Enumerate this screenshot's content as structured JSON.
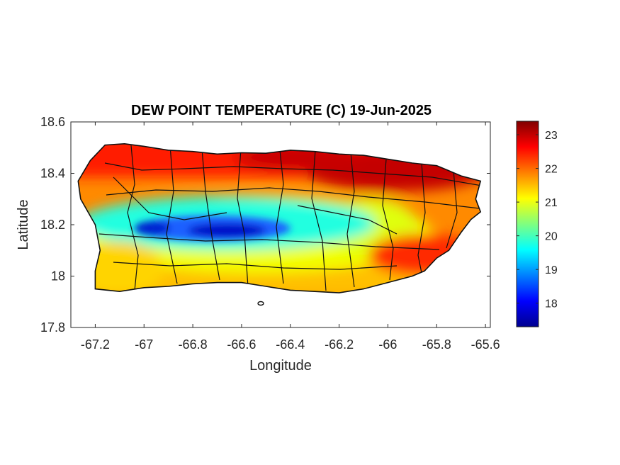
{
  "chart_data": {
    "type": "heatmap",
    "title": "DEW POINT TEMPERATURE (C) 19-Jun-2025",
    "xlabel": "Longitude",
    "ylabel": "Latitude",
    "xlim": [
      -67.3,
      -65.58
    ],
    "ylim": [
      17.8,
      18.6
    ],
    "xticks": [
      -67.2,
      -67,
      -66.8,
      -66.6,
      -66.4,
      -66.2,
      -66,
      -65.8,
      -65.6
    ],
    "yticks": [
      17.8,
      18,
      18.2,
      18.4,
      18.6
    ],
    "xtick_labels": [
      "-67.2",
      "-67",
      "-66.8",
      "-66.6",
      "-66.4",
      "-66.2",
      "-66",
      "-65.8",
      "-65.6"
    ],
    "ytick_labels": [
      "17.8",
      "18",
      "18.2",
      "18.4",
      "18.6"
    ],
    "colorbar": {
      "colormap": "jet",
      "range": [
        17.3,
        23.4
      ],
      "ticks": [
        18,
        19,
        20,
        21,
        22,
        23
      ],
      "tick_labels": [
        "18",
        "19",
        "20",
        "21",
        "22",
        "23"
      ]
    },
    "grid": false,
    "island_outline": [
      [
        -67.27,
        18.37
      ],
      [
        -67.22,
        18.45
      ],
      [
        -67.16,
        18.51
      ],
      [
        -67.08,
        18.515
      ],
      [
        -67.0,
        18.505
      ],
      [
        -66.9,
        18.49
      ],
      [
        -66.8,
        18.485
      ],
      [
        -66.7,
        18.475
      ],
      [
        -66.6,
        18.48
      ],
      [
        -66.5,
        18.478
      ],
      [
        -66.4,
        18.49
      ],
      [
        -66.3,
        18.485
      ],
      [
        -66.2,
        18.475
      ],
      [
        -66.1,
        18.47
      ],
      [
        -66.0,
        18.455
      ],
      [
        -65.9,
        18.44
      ],
      [
        -65.8,
        18.43
      ],
      [
        -65.7,
        18.39
      ],
      [
        -65.62,
        18.37
      ],
      [
        -65.64,
        18.3
      ],
      [
        -65.62,
        18.25
      ],
      [
        -65.66,
        18.22
      ],
      [
        -65.7,
        18.17
      ],
      [
        -65.75,
        18.1
      ],
      [
        -65.8,
        18.07
      ],
      [
        -65.85,
        18.02
      ],
      [
        -65.9,
        18.0
      ],
      [
        -66.0,
        17.975
      ],
      [
        -66.1,
        17.95
      ],
      [
        -66.2,
        17.935
      ],
      [
        -66.3,
        17.94
      ],
      [
        -66.4,
        17.945
      ],
      [
        -66.5,
        17.96
      ],
      [
        -66.6,
        17.975
      ],
      [
        -66.7,
        17.975
      ],
      [
        -66.8,
        17.97
      ],
      [
        -66.9,
        17.96
      ],
      [
        -67.0,
        17.955
      ],
      [
        -67.1,
        17.94
      ],
      [
        -67.2,
        17.95
      ],
      [
        -67.2,
        18.02
      ],
      [
        -67.18,
        18.1
      ],
      [
        -67.2,
        18.2
      ],
      [
        -67.26,
        18.3
      ]
    ],
    "contour_fields": [
      {
        "description": "dry core",
        "lon": -66.62,
        "lat": 18.17,
        "min": 17.5
      },
      {
        "description": "dry band west",
        "lon": -67.0,
        "lat": 18.19,
        "min": 17.7
      }
    ]
  }
}
